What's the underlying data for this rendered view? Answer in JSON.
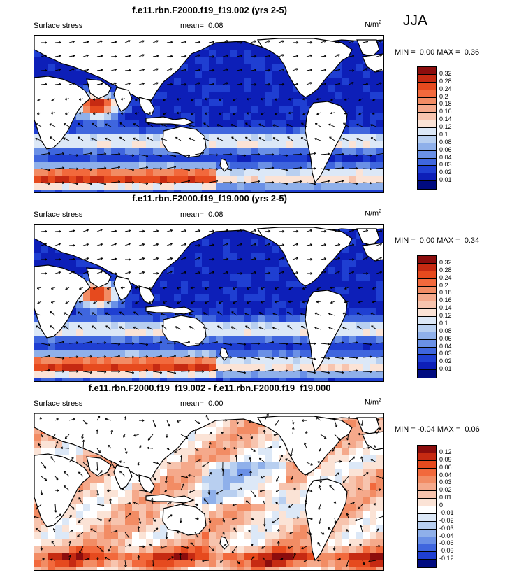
{
  "season": "JJA",
  "panels": [
    {
      "title": "f.e11.rbn.F2000.f19_f19.002 (yrs 2-5)",
      "variable": "Surface stress",
      "mean_label": "mean=",
      "mean": "0.08",
      "units_base": "N/m",
      "units_exp": "2",
      "min_label": "MIN =",
      "min": "0.00",
      "max_label": "MAX =",
      "max": "0.36",
      "type": "absolute"
    },
    {
      "title": "f.e11.rbn.F2000.f19_f19.000 (yrs 2-5)",
      "variable": "Surface stress",
      "mean_label": "mean=",
      "mean": "0.08",
      "units_base": "N/m",
      "units_exp": "2",
      "min_label": "MIN =",
      "min": "0.00",
      "max_label": "MAX =",
      "max": "0.34",
      "type": "absolute"
    },
    {
      "title": "f.e11.rbn.F2000.f19_f19.002 - f.e11.rbn.F2000.f19_f19.000",
      "variable": "Surface stress",
      "mean_label": "mean=",
      "mean": "0.00",
      "units_base": "N/m",
      "units_exp": "2",
      "min_label": "MIN =",
      "min": "-0.04",
      "max_label": "MAX =",
      "max": "0.06",
      "type": "difference"
    }
  ],
  "colorbar_abs": {
    "labels": [
      "0.32",
      "0.28",
      "0.24",
      "0.2",
      "0.18",
      "0.16",
      "0.14",
      "0.12",
      "0.1",
      "0.08",
      "0.06",
      "0.04",
      "0.03",
      "0.02",
      "0.01"
    ],
    "colors": [
      "#8c0d0d",
      "#c62a12",
      "#e64a1e",
      "#f2693c",
      "#f28c64",
      "#f5a98b",
      "#f7c4ae",
      "#fbe3d6",
      "#dce8f7",
      "#b8cff0",
      "#8fb0ea",
      "#6a90e6",
      "#3f66de",
      "#1f3fd2",
      "#0d1fb8",
      "#000b80"
    ]
  },
  "colorbar_diff": {
    "labels": [
      "0.12",
      "0.09",
      "0.06",
      "0.04",
      "0.03",
      "0.02",
      "0.01",
      "0",
      "-0.01",
      "-0.02",
      "-0.03",
      "-0.04",
      "-0.06",
      "-0.09",
      "-0.12"
    ],
    "colors": [
      "#8c0d0d",
      "#c62a12",
      "#e64a1e",
      "#f2693c",
      "#f28c64",
      "#f5a98b",
      "#f7c4ae",
      "#fbe3d6",
      "#ffffff",
      "#dce8f7",
      "#b8cff0",
      "#8fb0ea",
      "#6a90e6",
      "#3f66de",
      "#1f3fd2",
      "#000b80"
    ]
  }
}
